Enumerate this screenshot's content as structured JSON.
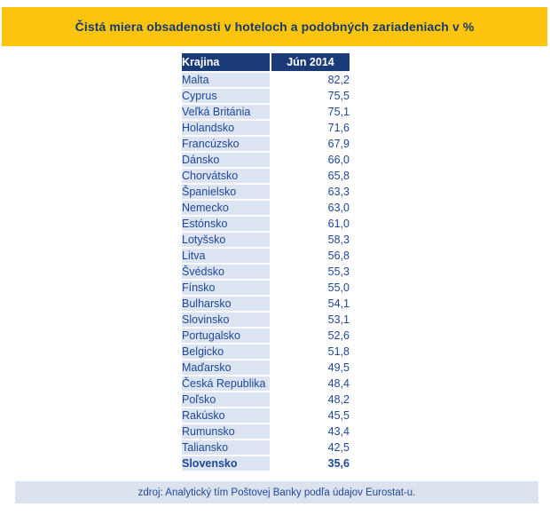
{
  "title": "Čistá miera obsadenosti v hoteloch a podobných zariadeniach v %",
  "source_note": "zdroj: Analytický tím Poštovej Banky podľa údajov Eurostat-u.",
  "colors": {
    "banner_yellow": "#FDC40D",
    "title_navy": "#1A3A6E",
    "header_navy": "#1A3A78",
    "row_light_blue": "#DCE3F1",
    "data_text_blue": "#1E4796",
    "footer_light_blue": "#DCE3EF"
  },
  "table": {
    "columns": [
      "Krajina",
      "Jún 2014"
    ],
    "rows": [
      {
        "country": "Malta",
        "value": "82,2"
      },
      {
        "country": "Cyprus",
        "value": "75,5"
      },
      {
        "country": "Veľká Británia",
        "value": "75,1"
      },
      {
        "country": "Holandsko",
        "value": "71,6"
      },
      {
        "country": "Francúzsko",
        "value": "67,9"
      },
      {
        "country": "Dánsko",
        "value": "66,0"
      },
      {
        "country": "Chorvátsko",
        "value": "65,8"
      },
      {
        "country": "Španielsko",
        "value": "63,3"
      },
      {
        "country": "Nemecko",
        "value": "63,0"
      },
      {
        "country": "Estónsko",
        "value": "61,0"
      },
      {
        "country": "Lotyšsko",
        "value": "58,3"
      },
      {
        "country": "Litva",
        "value": "56,8"
      },
      {
        "country": "Švédsko",
        "value": "55,3"
      },
      {
        "country": "Fínsko",
        "value": "55,0"
      },
      {
        "country": "Bulharsko",
        "value": "54,1"
      },
      {
        "country": "Slovinsko",
        "value": "53,1"
      },
      {
        "country": "Portugalsko",
        "value": "52,6"
      },
      {
        "country": "Belgicko",
        "value": "51,8"
      },
      {
        "country": "Maďarsko",
        "value": "49,5"
      },
      {
        "country": "Česká Republika",
        "value": "48,4"
      },
      {
        "country": "Poľsko",
        "value": "48,2"
      },
      {
        "country": "Rakúsko",
        "value": "45,5"
      },
      {
        "country": "Rumunsko",
        "value": "43,4"
      },
      {
        "country": "Taliansko",
        "value": "42,5"
      },
      {
        "country": "Slovensko",
        "value": "35,6",
        "bold": true
      }
    ]
  },
  "chart_data": {
    "type": "table",
    "title": "Čistá miera obsadenosti v hoteloch a podobných zariadeniach v %",
    "columns": [
      "Krajina",
      "Jún 2014"
    ],
    "categories": [
      "Malta",
      "Cyprus",
      "Veľká Británia",
      "Holandsko",
      "Francúzsko",
      "Dánsko",
      "Chorvátsko",
      "Španielsko",
      "Nemecko",
      "Estónsko",
      "Lotyšsko",
      "Litva",
      "Švédsko",
      "Fínsko",
      "Bulharsko",
      "Slovinsko",
      "Portugalsko",
      "Belgicko",
      "Maďarsko",
      "Česká Republika",
      "Poľsko",
      "Rakúsko",
      "Rumunsko",
      "Taliansko",
      "Slovensko"
    ],
    "values": [
      82.2,
      75.5,
      75.1,
      71.6,
      67.9,
      66.0,
      65.8,
      63.3,
      63.0,
      61.0,
      58.3,
      56.8,
      55.3,
      55.0,
      54.1,
      53.1,
      52.6,
      51.8,
      49.5,
      48.4,
      48.2,
      45.5,
      43.4,
      42.5,
      35.6
    ],
    "source": "zdroj: Analytický tím Poštovej Banky podľa údajov Eurostat-u."
  }
}
